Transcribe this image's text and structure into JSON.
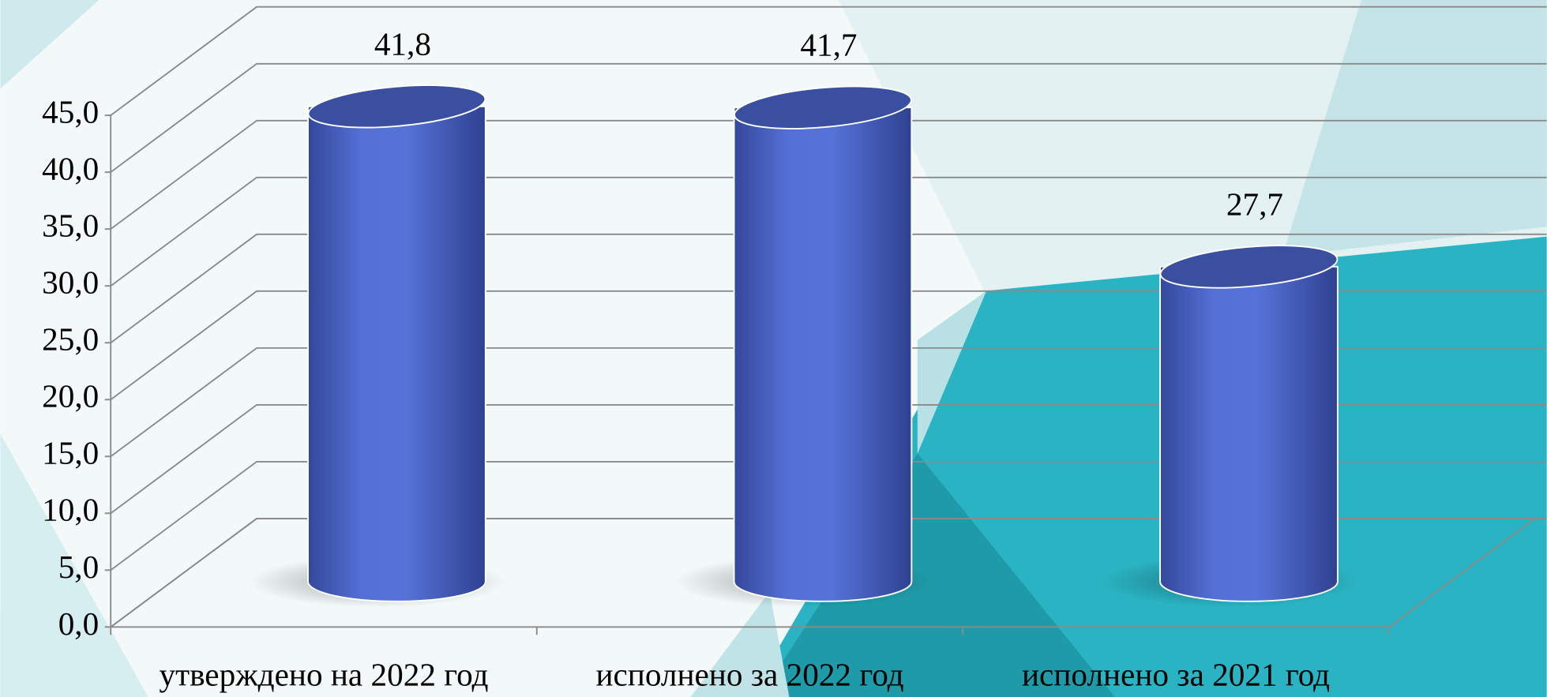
{
  "chart_data": {
    "type": "bar",
    "categories": [
      "утверждено на 2022 год",
      "исполнено за 2022 год",
      "исполнено за 2021 год"
    ],
    "values": [
      41.8,
      41.7,
      27.7
    ],
    "value_labels": [
      "41,8",
      "41,7",
      "27,7"
    ],
    "color": "#5470d6",
    "ylim": [
      0,
      45
    ],
    "yticks": [
      {
        "value": 0,
        "label": "0,0"
      },
      {
        "value": 5,
        "label": "5,0"
      },
      {
        "value": 10,
        "label": "10,0"
      },
      {
        "value": 15,
        "label": "15,0"
      },
      {
        "value": 20,
        "label": "20,0"
      },
      {
        "value": 25,
        "label": "25,0"
      },
      {
        "value": 30,
        "label": "30,0"
      },
      {
        "value": 35,
        "label": "35,0"
      },
      {
        "value": 40,
        "label": "40,0"
      },
      {
        "value": 45,
        "label": "45,0"
      }
    ],
    "grid": true
  }
}
